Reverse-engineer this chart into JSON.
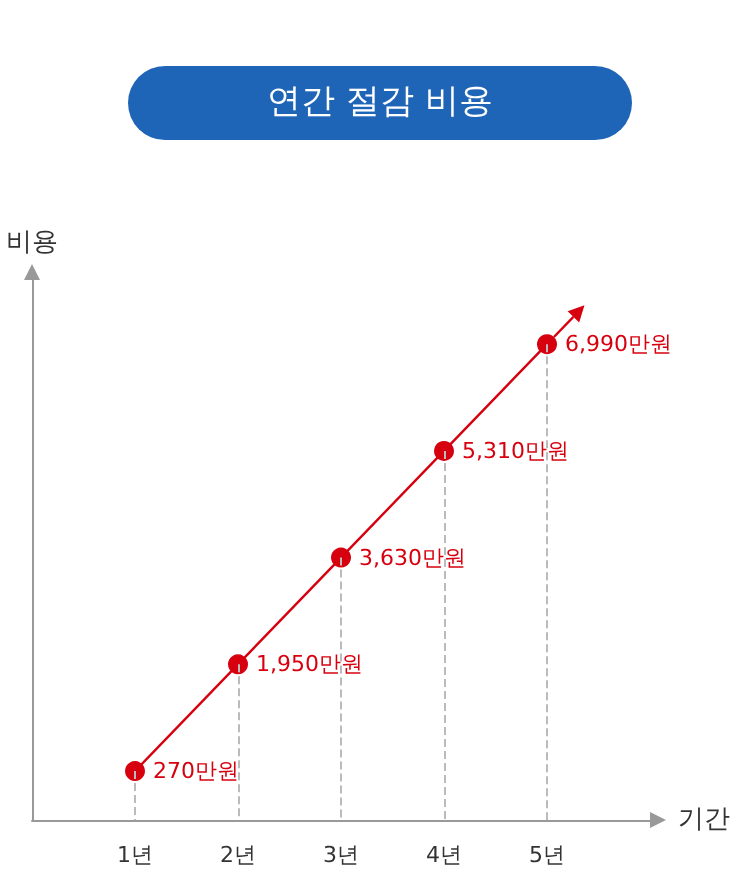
{
  "chart_data": {
    "type": "line",
    "title": "연간 절감 비용",
    "xlabel": "기간",
    "ylabel": "비용",
    "categories": [
      "1년",
      "2년",
      "3년",
      "4년",
      "5년"
    ],
    "series": [
      {
        "color": "#d7000f",
        "values": [
          270,
          1950,
          3630,
          5310,
          6990
        ],
        "value_labels": [
          "270만원",
          "1,950만원",
          "3,630만원",
          "5,310만원",
          "6,990만원"
        ]
      }
    ],
    "ylim": [
      -500,
      8000
    ],
    "tick_labels": "x",
    "marker": "circle",
    "line_style": "solid",
    "grid": "x"
  }
}
